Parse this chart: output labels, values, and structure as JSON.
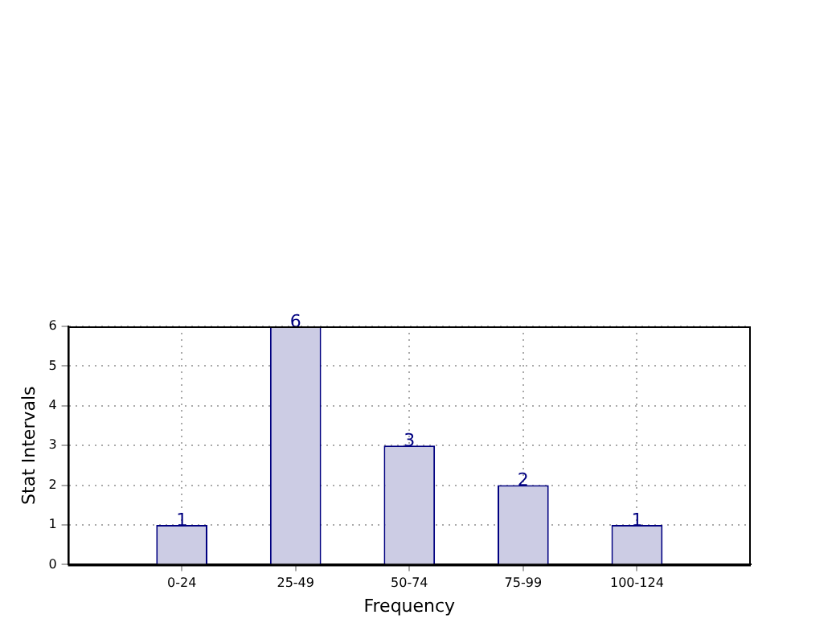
{
  "chart_data": {
    "type": "bar",
    "xlabel": "Frequency",
    "ylabel": "Stat Intervals",
    "categories": [
      "0-24",
      "25-49",
      "50-74",
      "75-99",
      "100-124"
    ],
    "values": [
      1,
      6,
      3,
      2,
      1
    ],
    "color": "#cccce4",
    "ylim": [
      0,
      6
    ],
    "yticks": [
      0,
      1,
      2,
      3,
      4,
      5,
      6
    ],
    "grid": true,
    "data_labels": true,
    "legend": false
  }
}
